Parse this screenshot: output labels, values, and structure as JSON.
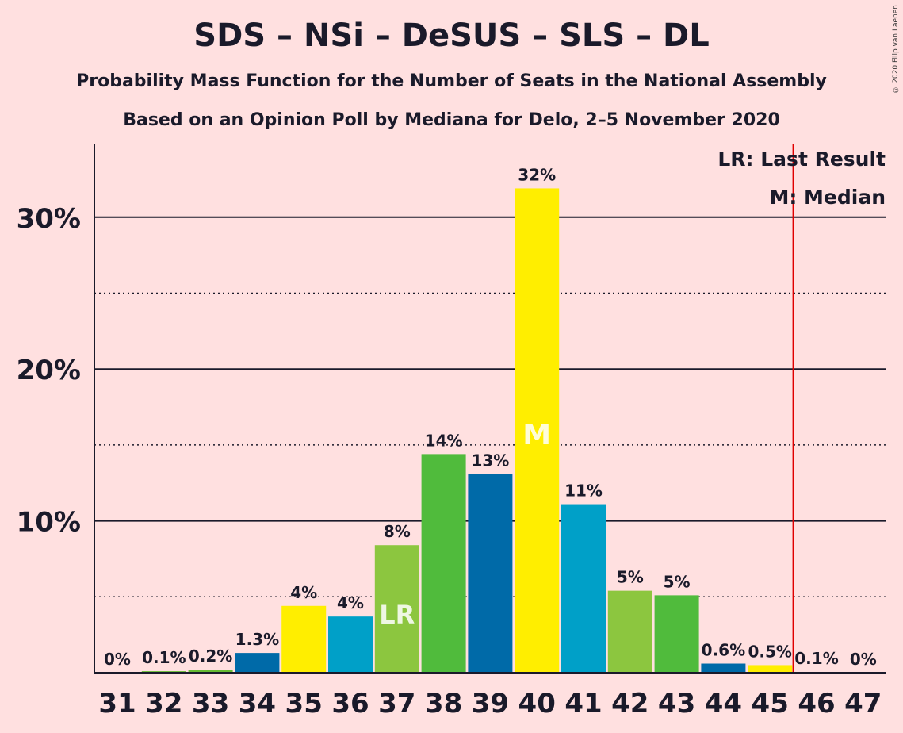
{
  "title": "SDS – NSi – DeSUS – SLS – DL",
  "subtitle1": "Probability Mass Function for the Number of Seats in the National Assembly",
  "subtitle2": "Based on an Opinion Poll by Mediana for Delo, 2–5 November 2020",
  "copyright": "© 2020 Filip van Laenen",
  "legend": {
    "lr": "LR: Last Result",
    "m": "M: Median"
  },
  "chart_data": {
    "type": "bar",
    "categories": [
      "31",
      "32",
      "33",
      "34",
      "35",
      "36",
      "37",
      "38",
      "39",
      "40",
      "41",
      "42",
      "43",
      "44",
      "45",
      "46",
      "47"
    ],
    "values": [
      0,
      0.1,
      0.2,
      1.3,
      4.4,
      3.7,
      8.4,
      14.4,
      13.1,
      31.9,
      11.1,
      5.4,
      5.1,
      0.6,
      0.5,
      0.05,
      0
    ],
    "labels": [
      "0%",
      "0.1%",
      "0.2%",
      "1.3%",
      "4%",
      "4%",
      "8%",
      "14%",
      "13%",
      "32%",
      "11%",
      "5%",
      "5%",
      "0.6%",
      "0.5%",
      "0.1%",
      "0%"
    ],
    "colors": [
      "#00a0c8",
      "#66bb33",
      "#66bb33",
      "#006aa8",
      "#ffee00",
      "#00a0c8",
      "#8cc63f",
      "#50bb3c",
      "#006aa8",
      "#ffee00",
      "#00a0c8",
      "#8cc63f",
      "#50bb3c",
      "#006aa8",
      "#ffee00",
      "#00a0c8",
      "#8cc63f"
    ],
    "ylim": [
      0,
      35
    ],
    "yticks": [
      10,
      20,
      30
    ],
    "ytick_labels": [
      "10%",
      "20%",
      "30%"
    ],
    "gridlines_dotted": [
      5,
      15,
      25
    ],
    "last_result_seat": "37",
    "last_result_label": "LR",
    "median_seat": "40",
    "median_label": "M",
    "majority_line_after_seat": "45",
    "majority_line_color": "#e00000",
    "xlabel": "",
    "ylabel": "",
    "legend_position": "top-right"
  }
}
